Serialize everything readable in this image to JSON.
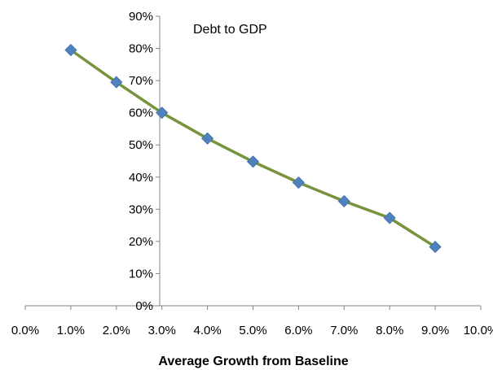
{
  "chart_data": {
    "type": "scatter",
    "title": "Debt to GDP",
    "xlabel": "Average  Growth from Baseline",
    "ylabel": "",
    "x_ticks": [
      "0.0%",
      "1.0%",
      "2.0%",
      "3.0%",
      "4.0%",
      "5.0%",
      "6.0%",
      "7.0%",
      "8.0%",
      "9.0%",
      "10.0%"
    ],
    "y_ticks": [
      "0%",
      "10%",
      "20%",
      "30%",
      "40%",
      "50%",
      "60%",
      "70%",
      "80%",
      "90%"
    ],
    "xlim": [
      0,
      10
    ],
    "ylim": [
      0,
      90
    ],
    "grid": false,
    "legend": "none",
    "series": [
      {
        "x": [
          1,
          2,
          3,
          4,
          5,
          6,
          7,
          8,
          9
        ],
        "values": [
          79.5,
          69.5,
          60,
          52,
          44.8,
          38.3,
          32.5,
          27.3,
          18.3
        ],
        "line_color": "#77933C",
        "marker_color": "#4F81BD",
        "marker": "diamond"
      }
    ]
  }
}
